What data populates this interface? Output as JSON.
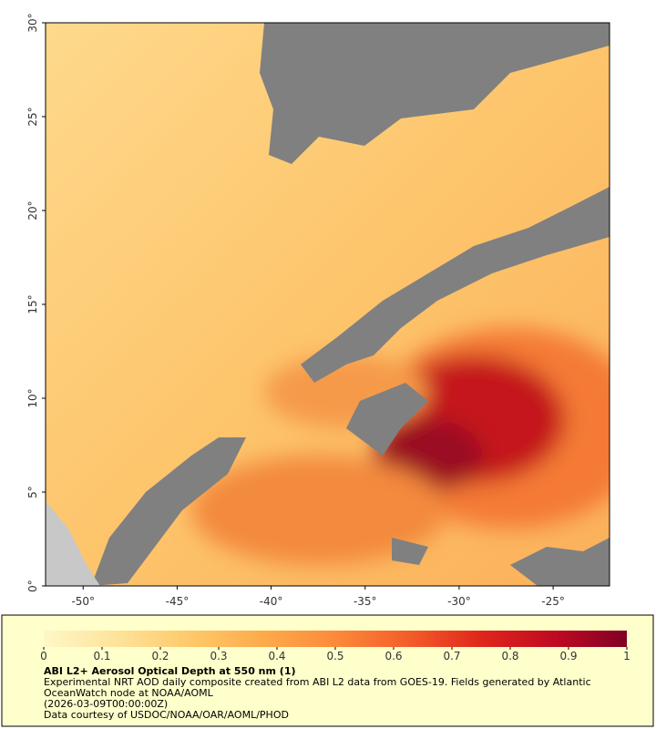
{
  "map": {
    "xlim": [
      -52,
      -22
    ],
    "ylim": [
      0,
      30
    ],
    "xticks": [
      {
        "value": -50,
        "label": "-50°"
      },
      {
        "value": -45,
        "label": "-45°"
      },
      {
        "value": -40,
        "label": "-40°"
      },
      {
        "value": -35,
        "label": "-35°"
      },
      {
        "value": -30,
        "label": "-30°"
      },
      {
        "value": -25,
        "label": "-25°"
      }
    ],
    "yticks": [
      {
        "value": 0,
        "label": "0°"
      },
      {
        "value": 5,
        "label": "5°"
      },
      {
        "value": 10,
        "label": "10°"
      },
      {
        "value": 15,
        "label": "15°"
      },
      {
        "value": 20,
        "label": "20°"
      },
      {
        "value": 25,
        "label": "25°"
      },
      {
        "value": 30,
        "label": "30°"
      }
    ]
  },
  "colorbar": {
    "range": [
      0,
      1
    ],
    "ticks": [
      0,
      0.1,
      0.2,
      0.3,
      0.4,
      0.5,
      0.6,
      0.7,
      0.8,
      0.9,
      1
    ],
    "colorscale": [
      "#fff7c8",
      "#fee39a",
      "#fec96a",
      "#fdab4b",
      "#fc8a3a",
      "#f45d2a",
      "#e0261c",
      "#c00a22",
      "#800026"
    ]
  },
  "caption": {
    "title": "ABI L2+ Aerosol Optical Depth at 550 nm (1)",
    "description": "Experimental NRT AOD daily composite created from ABI L2 data from GOES-19. Fields generated by Atlantic OceanWatch node at NOAA/AOML",
    "time": "(2026-03-09T00:00:00Z)",
    "credit": "Data courtesy of USDOC/NOAA/OAR/AOML/PHOD"
  }
}
